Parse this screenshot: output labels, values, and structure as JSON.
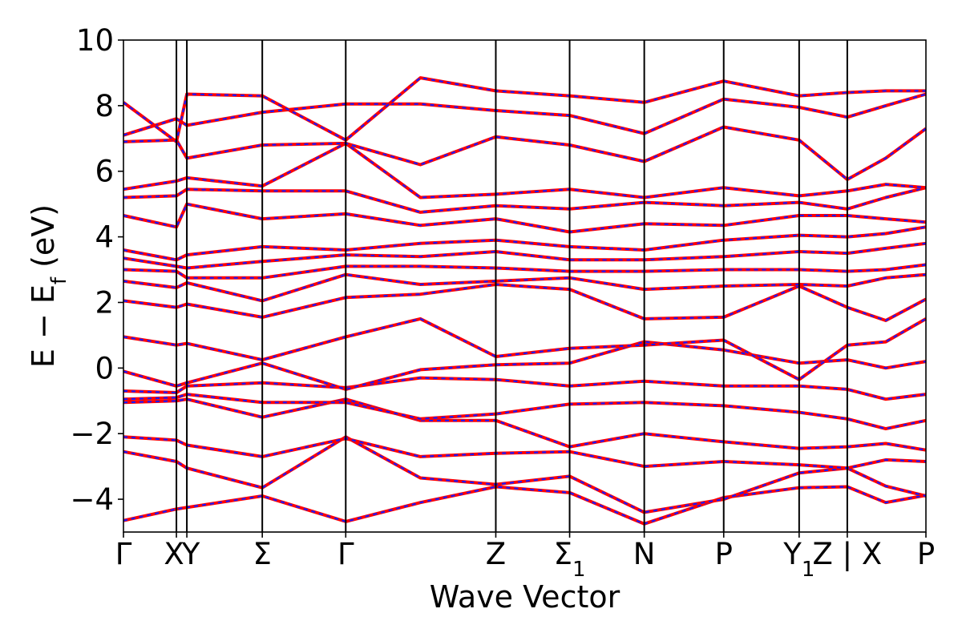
{
  "chart_data": {
    "type": "line",
    "title": "",
    "xlabel": "Wave Vector",
    "ylabel": "E − E_f (eV)",
    "ylabel_parts": {
      "main": "E − E",
      "sub": "f",
      "unit": " (eV)"
    },
    "ylim": [
      -5,
      10
    ],
    "yticks": [
      -4,
      -2,
      0,
      2,
      4,
      6,
      8,
      10
    ],
    "ytick_labels": [
      "−4",
      "−2",
      "0",
      "2",
      "4",
      "6",
      "8",
      "10"
    ],
    "xlim": [
      0,
      1
    ],
    "xticks": [
      {
        "x": 0.0,
        "label": "Γ",
        "sub": ""
      },
      {
        "x": 0.066,
        "label": "X",
        "sub": ""
      },
      {
        "x": 0.079,
        "label": "Y",
        "sub": ""
      },
      {
        "x": 0.173,
        "label": "Σ",
        "sub": ""
      },
      {
        "x": 0.277,
        "label": "Γ",
        "sub": ""
      },
      {
        "x": 0.464,
        "label": "Z",
        "sub": ""
      },
      {
        "x": 0.556,
        "label": "Σ",
        "sub": "1"
      },
      {
        "x": 0.649,
        "label": "N",
        "sub": ""
      },
      {
        "x": 0.748,
        "label": "P",
        "sub": ""
      },
      {
        "x": 0.842,
        "label": "Y",
        "sub": "1"
      },
      {
        "x": 0.902,
        "label": "Z | X",
        "sub": ""
      },
      {
        "x": 1.0,
        "label": "P",
        "sub": ""
      }
    ],
    "grid": false,
    "legend": "none",
    "colors": {
      "band_solid": "#ff0000",
      "band_dashed": "#1a1aff",
      "kline": "#000000"
    },
    "series_note_style": "each band drawn as red solid line overlaid with blue dashed line",
    "x": [
      0.0,
      0.066,
      0.079,
      0.173,
      0.277,
      0.37,
      0.464,
      0.556,
      0.649,
      0.748,
      0.842,
      0.902,
      0.95,
      1.0
    ],
    "series": [
      {
        "values": [
          -4.65,
          -4.3,
          -4.25,
          -3.9,
          -4.68,
          -4.1,
          -3.62,
          -3.8,
          -4.75,
          -3.95,
          -3.65,
          -3.62,
          -4.1,
          -3.88
        ]
      },
      {
        "values": [
          -2.55,
          -2.85,
          -3.05,
          -3.65,
          -2.1,
          -3.35,
          -3.55,
          -3.3,
          -4.4,
          -4.0,
          -3.2,
          -3.05,
          -3.6,
          -3.9
        ]
      },
      {
        "values": [
          -2.1,
          -2.2,
          -2.35,
          -2.7,
          -2.15,
          -2.7,
          -2.6,
          -2.55,
          -3.0,
          -2.85,
          -2.95,
          -3.05,
          -2.8,
          -2.85
        ]
      },
      {
        "values": [
          -1.05,
          -1.0,
          -0.95,
          -1.5,
          -0.95,
          -1.6,
          -1.6,
          -2.4,
          -2.0,
          -2.25,
          -2.45,
          -2.4,
          -2.3,
          -2.5
        ]
      },
      {
        "values": [
          -0.95,
          -0.9,
          -0.8,
          -1.05,
          -1.05,
          -1.55,
          -1.4,
          -1.1,
          -1.05,
          -1.15,
          -1.35,
          -1.55,
          -1.85,
          -1.6
        ]
      },
      {
        "values": [
          -0.7,
          -0.75,
          -0.55,
          -0.45,
          -0.6,
          -0.3,
          -0.35,
          -0.55,
          -0.4,
          -0.55,
          -0.55,
          -0.65,
          -0.95,
          -0.8
        ]
      },
      {
        "values": [
          -0.1,
          -0.55,
          -0.45,
          0.15,
          -0.65,
          -0.05,
          0.1,
          0.15,
          0.8,
          0.55,
          0.15,
          0.25,
          0.0,
          0.2
        ]
      },
      {
        "values": [
          0.95,
          0.7,
          0.75,
          0.25,
          0.95,
          1.5,
          0.35,
          0.6,
          0.7,
          0.85,
          -0.35,
          0.7,
          0.8,
          1.5
        ]
      },
      {
        "values": [
          2.05,
          1.85,
          1.95,
          1.55,
          2.15,
          2.25,
          2.55,
          2.4,
          1.5,
          1.55,
          2.5,
          1.85,
          1.45,
          2.1
        ]
      },
      {
        "values": [
          2.65,
          2.45,
          2.6,
          2.05,
          2.85,
          2.55,
          2.65,
          2.75,
          2.4,
          2.5,
          2.55,
          2.5,
          2.75,
          2.85
        ]
      },
      {
        "values": [
          3.0,
          2.95,
          2.75,
          2.75,
          3.1,
          3.1,
          3.05,
          2.95,
          2.95,
          3.0,
          3.0,
          2.95,
          3.0,
          3.15
        ]
      },
      {
        "values": [
          3.35,
          3.1,
          3.05,
          3.25,
          3.45,
          3.4,
          3.55,
          3.3,
          3.3,
          3.4,
          3.55,
          3.5,
          3.65,
          3.8
        ]
      },
      {
        "values": [
          3.6,
          3.3,
          3.45,
          3.7,
          3.6,
          3.8,
          3.9,
          3.7,
          3.6,
          3.9,
          4.05,
          4.0,
          4.1,
          4.3
        ]
      },
      {
        "values": [
          4.65,
          4.3,
          5.0,
          4.55,
          4.7,
          4.35,
          4.55,
          4.15,
          4.4,
          4.35,
          4.65,
          4.65,
          4.55,
          4.45
        ]
      },
      {
        "values": [
          5.2,
          5.25,
          5.45,
          5.4,
          5.4,
          4.75,
          4.95,
          4.85,
          5.05,
          4.95,
          5.05,
          4.85,
          5.2,
          5.5
        ]
      },
      {
        "values": [
          5.45,
          5.7,
          5.8,
          5.55,
          6.85,
          5.2,
          5.3,
          5.45,
          5.2,
          5.5,
          5.25,
          5.4,
          5.6,
          5.5
        ]
      },
      {
        "values": [
          6.9,
          6.95,
          6.4,
          6.8,
          6.85,
          6.2,
          7.05,
          6.8,
          6.3,
          7.35,
          6.95,
          5.75,
          6.4,
          7.3
        ]
      },
      {
        "values": [
          7.1,
          7.6,
          7.4,
          7.8,
          8.05,
          8.05,
          7.85,
          7.7,
          7.15,
          8.2,
          7.95,
          7.65,
          8.0,
          8.35
        ]
      },
      {
        "values": [
          8.1,
          6.9,
          8.35,
          8.3,
          6.95,
          8.85,
          8.45,
          8.3,
          8.1,
          8.75,
          8.3,
          8.4,
          8.45,
          8.45
        ]
      }
    ]
  }
}
